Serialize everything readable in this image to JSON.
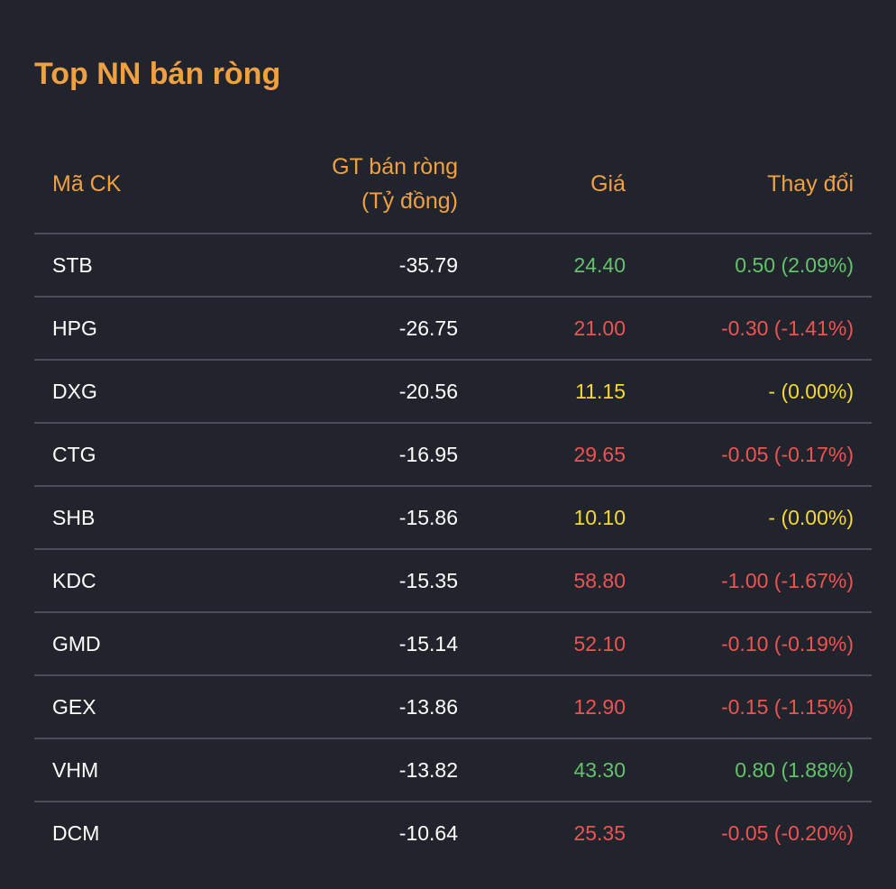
{
  "title": "Top NN bán ròng",
  "columns": {
    "symbol": "Mã CK",
    "value_line1": "GT bán ròng",
    "value_line2": "(Tỷ đồng)",
    "price": "Giá",
    "change": "Thay đổi"
  },
  "colors": {
    "accent": "#f0a041",
    "up": "#63c36b",
    "down": "#ef5350",
    "flat": "#f5d833",
    "background": "#21242d"
  },
  "rows": [
    {
      "symbol": "STB",
      "value": "-35.79",
      "price": "24.40",
      "change": "0.50 (2.09%)",
      "trend": "up"
    },
    {
      "symbol": "HPG",
      "value": "-26.75",
      "price": "21.00",
      "change": "-0.30 (-1.41%)",
      "trend": "down"
    },
    {
      "symbol": "DXG",
      "value": "-20.56",
      "price": "11.15",
      "change": "- (0.00%)",
      "trend": "flat"
    },
    {
      "symbol": "CTG",
      "value": "-16.95",
      "price": "29.65",
      "change": "-0.05 (-0.17%)",
      "trend": "down"
    },
    {
      "symbol": "SHB",
      "value": "-15.86",
      "price": "10.10",
      "change": "- (0.00%)",
      "trend": "flat"
    },
    {
      "symbol": "KDC",
      "value": "-15.35",
      "price": "58.80",
      "change": "-1.00 (-1.67%)",
      "trend": "down"
    },
    {
      "symbol": "GMD",
      "value": "-15.14",
      "price": "52.10",
      "change": "-0.10 (-0.19%)",
      "trend": "down"
    },
    {
      "symbol": "GEX",
      "value": "-13.86",
      "price": "12.90",
      "change": "-0.15 (-1.15%)",
      "trend": "down"
    },
    {
      "symbol": "VHM",
      "value": "-13.82",
      "price": "43.30",
      "change": "0.80 (1.88%)",
      "trend": "up"
    },
    {
      "symbol": "DCM",
      "value": "-10.64",
      "price": "25.35",
      "change": "-0.05 (-0.20%)",
      "trend": "down"
    }
  ]
}
